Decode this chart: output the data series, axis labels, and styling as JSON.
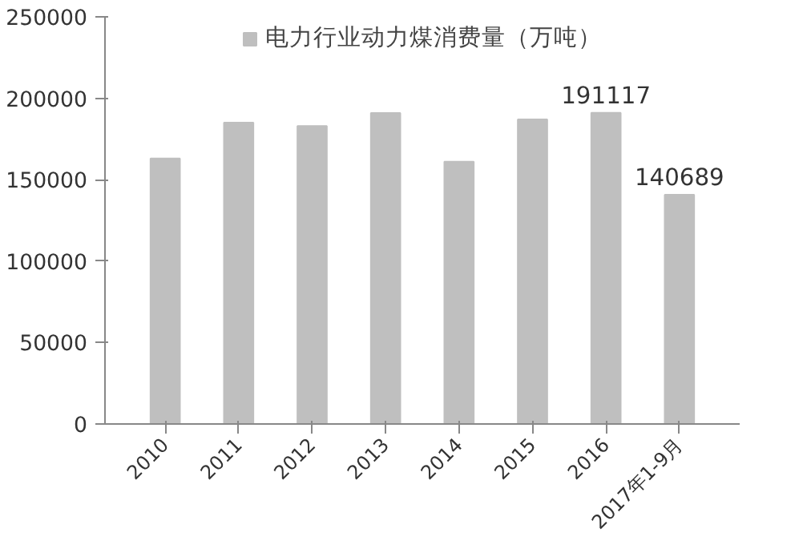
{
  "chart_data": {
    "type": "bar",
    "categories": [
      "2010",
      "2011",
      "2012",
      "2013",
      "2014",
      "2015",
      "2016",
      "2017年1-9月"
    ],
    "series": [
      {
        "name": "电力行业动力煤消费量（万吨）",
        "color": "#bfbfbf",
        "values": [
          163000,
          185000,
          183000,
          191000,
          161000,
          187000,
          191117,
          140689
        ],
        "value_labels": [
          null,
          null,
          null,
          null,
          null,
          null,
          "191117",
          "140689"
        ]
      }
    ],
    "ylim": [
      0,
      250000
    ],
    "yticks": [
      0,
      50000,
      100000,
      150000,
      200000,
      250000
    ],
    "legend": "top"
  }
}
